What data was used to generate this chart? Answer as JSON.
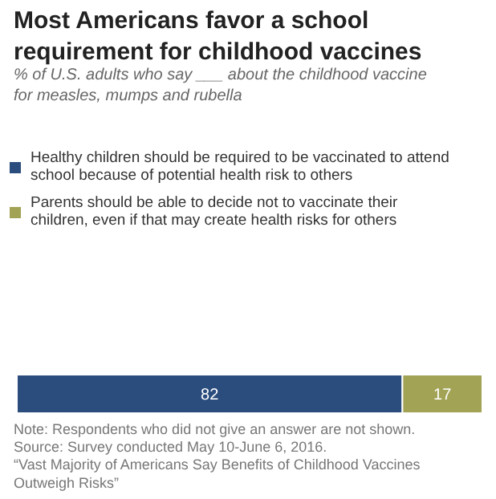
{
  "chart_data": {
    "type": "bar",
    "orientation": "horizontal",
    "stacked": true,
    "data_labels": true,
    "legend": "top",
    "title": "Most Americans favor a school requirement for childhood vaccines",
    "subtitle": "% of U.S. adults who say ___ about the childhood vaccine for measles, mumps and rubella",
    "categories": [
      null
    ],
    "series": [
      {
        "name": "Healthy children should be required to be vaccinated to attend school because of potential health risk to others",
        "color": "#2b4d7e",
        "values": [
          82
        ]
      },
      {
        "name": "Parents should be able to decide not to vaccinate their children, even if that may create health risks for others",
        "color": "#a2a355",
        "values": [
          17
        ]
      }
    ],
    "annotations": [
      "Note: Respondents who did not give an answer are not shown.",
      "Source: Survey conducted May 10-June 6, 2016.",
      "“Vast Majority of Americans Say Benefits of Childhood Vaccines Outweigh Risks”"
    ]
  }
}
